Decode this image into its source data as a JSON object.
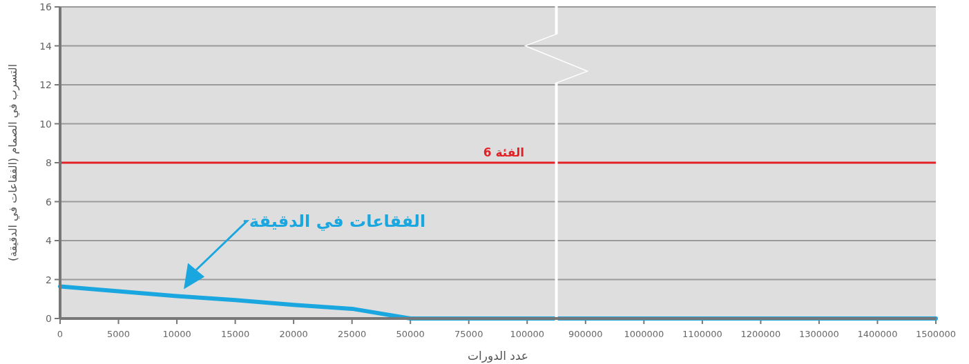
{
  "chart_data": {
    "type": "line",
    "xlabel": "عدد الدورات",
    "ylabel": "التسرب في الصمام (الفقاعات في الدقيقة)",
    "categories": [
      "0",
      "5000",
      "10000",
      "15000",
      "20000",
      "25000",
      "50000",
      "75000",
      "100000",
      "900000",
      "1000000",
      "1100000",
      "1200000",
      "1300000",
      "1400000",
      "1500000"
    ],
    "series": [
      {
        "name": "الفقاعات في الدقيقة",
        "color": "#1aa7e0",
        "values": [
          1.65,
          1.4,
          1.15,
          0.95,
          0.7,
          0.5,
          0,
          0,
          0,
          0,
          0,
          0,
          0,
          0,
          0,
          0
        ]
      }
    ],
    "ylim": [
      0,
      16
    ],
    "yticks": [
      0,
      2,
      4,
      6,
      8,
      10,
      12,
      14,
      16
    ],
    "grid": "y",
    "marker": "none",
    "line_style": "solid",
    "ref_lines": [
      {
        "axis": "y",
        "value": 8,
        "label": "الفئة 6",
        "color": "#e32227",
        "line_style": "solid"
      }
    ]
  }
}
